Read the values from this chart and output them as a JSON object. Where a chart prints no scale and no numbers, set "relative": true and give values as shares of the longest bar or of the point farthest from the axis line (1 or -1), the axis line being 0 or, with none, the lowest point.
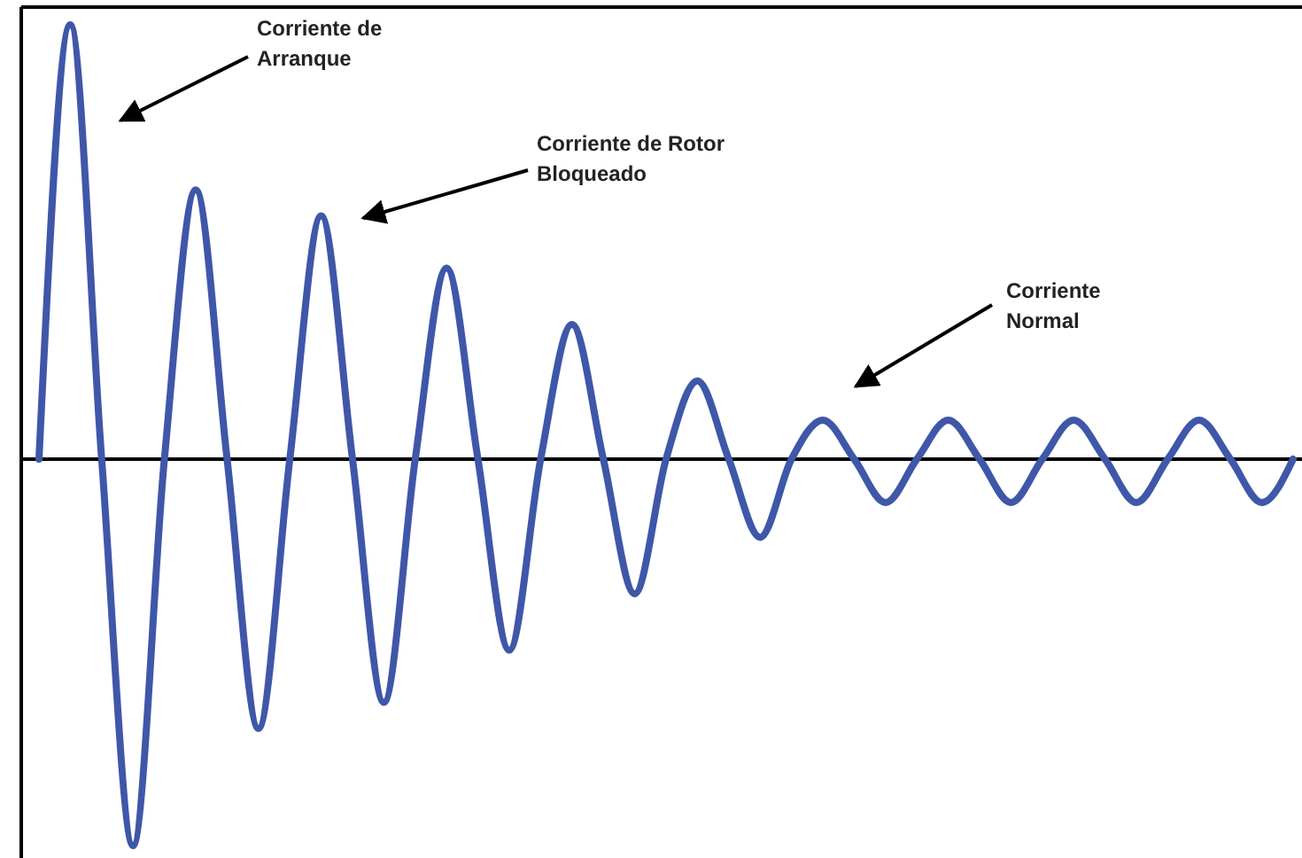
{
  "chart_data": {
    "type": "line",
    "relative": true,
    "categories": [
      null,
      null,
      null,
      null,
      null,
      null,
      null,
      null,
      null,
      null,
      null,
      null,
      null,
      null,
      null,
      null,
      null,
      null,
      null,
      null,
      null,
      null,
      null,
      null,
      null,
      null,
      null,
      null,
      null,
      null,
      null,
      null,
      null,
      null,
      null,
      null,
      null,
      null,
      null,
      null,
      null
    ],
    "series": [
      {
        "color": "#3f57a8",
        "values": [
          0,
          1,
          0,
          -0.89,
          0,
          0.62,
          0,
          -0.62,
          0,
          0.56,
          0,
          -0.56,
          0,
          0.44,
          0,
          -0.44,
          0,
          0.31,
          0,
          -0.31,
          0,
          0.18,
          0,
          -0.18,
          0,
          0.09,
          0,
          -0.1,
          0,
          0.09,
          0,
          -0.1,
          0,
          0.09,
          0,
          -0.1,
          0,
          0.09,
          0,
          -0.1,
          0
        ]
      }
    ],
    "annotations": [
      "Corriente de\nArranque",
      "Corriente de Rotor\nBloqueado",
      "Corriente\nNormal"
    ]
  }
}
